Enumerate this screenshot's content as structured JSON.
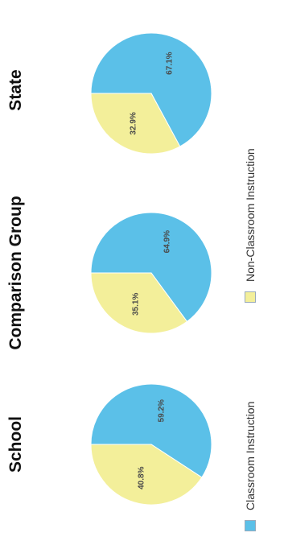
{
  "chart_data": [
    {
      "type": "pie",
      "title": "School",
      "labels": [
        "Classroom Instruction",
        "Non-Classroom Instruction"
      ],
      "values": [
        59.2,
        40.8
      ],
      "value_labels": [
        "59.2%",
        "40.8%"
      ]
    },
    {
      "type": "pie",
      "title": "Comparison Group",
      "labels": [
        "Classroom Instruction",
        "Non-Classroom Instruction"
      ],
      "values": [
        64.9,
        35.1
      ],
      "value_labels": [
        "64.9%",
        "35.1%"
      ]
    },
    {
      "type": "pie",
      "title": "State",
      "labels": [
        "Classroom Instruction",
        "Non-Classroom Instruction"
      ],
      "values": [
        67.1,
        32.9
      ],
      "value_labels": [
        "67.1%",
        "32.9%"
      ]
    }
  ],
  "legend": [
    {
      "label": "Classroom Instruction",
      "color": "#5bc0e8"
    },
    {
      "label": "Non-Classroom Instruction",
      "color": "#f3ef9a"
    }
  ],
  "colors": {
    "classroom": "#5bc0e8",
    "non_classroom": "#f3ef9a"
  }
}
